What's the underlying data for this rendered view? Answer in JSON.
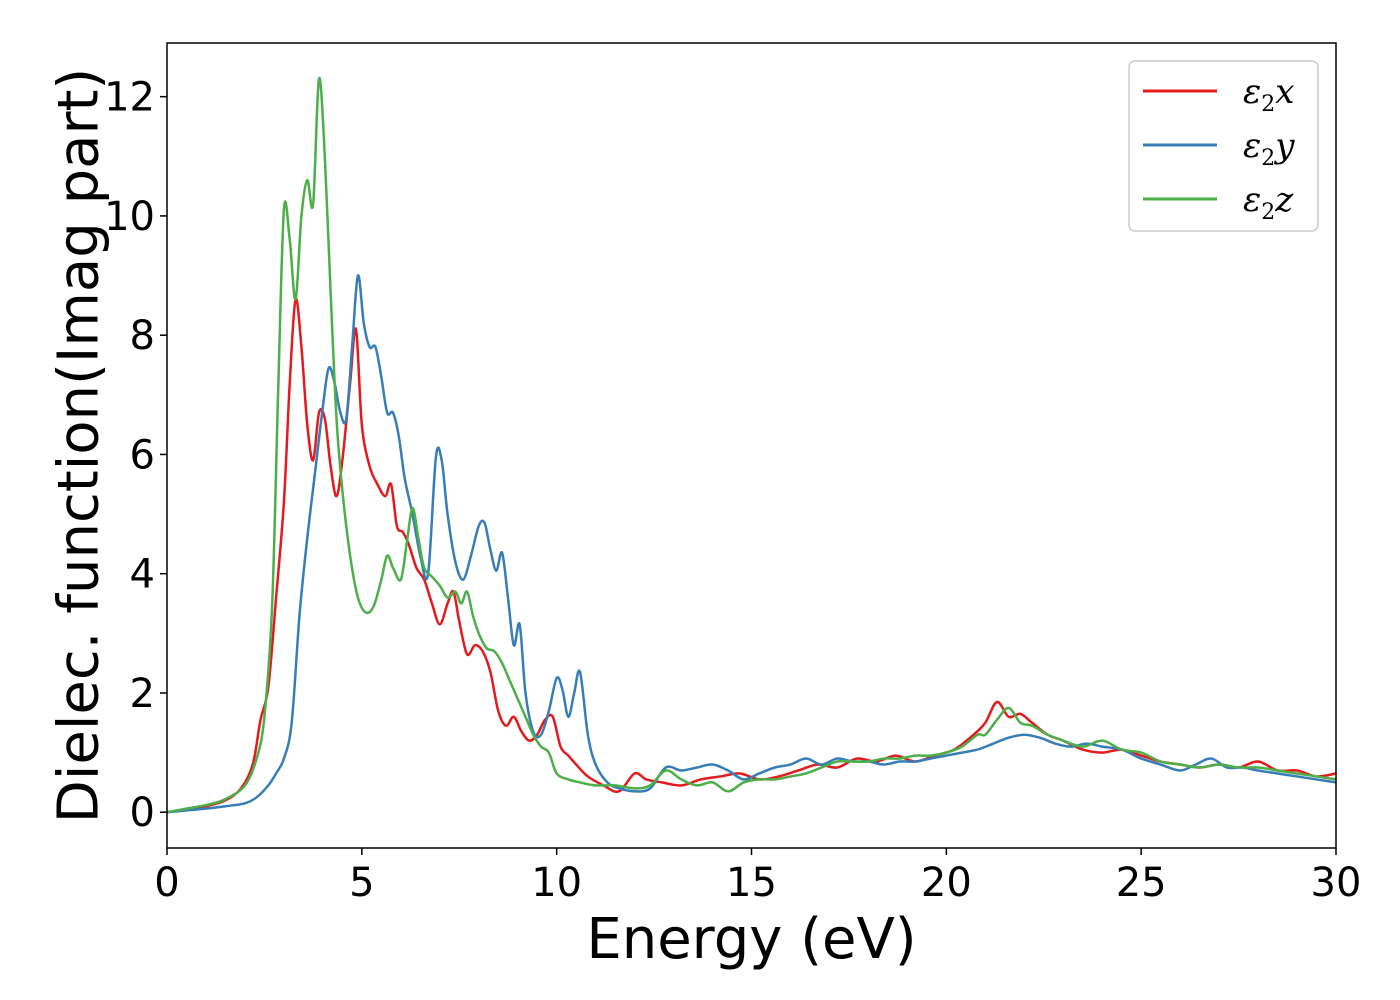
{
  "chart_data": {
    "type": "line",
    "title": "",
    "xlabel": "Energy (eV)",
    "ylabel": "Dielec. function(Imag part)",
    "xlim": [
      0,
      30
    ],
    "ylim": [
      -0.6,
      12.9
    ],
    "xticks": [
      0,
      5,
      10,
      15,
      20,
      25,
      30
    ],
    "yticks": [
      0,
      2,
      4,
      6,
      8,
      10,
      12
    ],
    "grid": false,
    "legend_position": "top-right",
    "series": [
      {
        "name": "ε2x",
        "legend": {
          "base": "ε",
          "sub": "2",
          "var": "x"
        },
        "color": "#e41a1c",
        "x": [
          0,
          0.5,
          1.0,
          1.5,
          1.9,
          2.2,
          2.4,
          2.6,
          2.8,
          3.0,
          3.15,
          3.3,
          3.45,
          3.6,
          3.75,
          3.9,
          4.05,
          4.2,
          4.35,
          4.5,
          4.7,
          4.85,
          5.0,
          5.2,
          5.4,
          5.6,
          5.75,
          5.9,
          6.05,
          6.2,
          6.4,
          6.6,
          6.8,
          7.0,
          7.2,
          7.35,
          7.5,
          7.7,
          7.9,
          8.1,
          8.3,
          8.5,
          8.7,
          8.9,
          9.1,
          9.3,
          9.5,
          9.7,
          9.9,
          10.1,
          10.3,
          10.5,
          10.8,
          11.2,
          11.6,
          12.0,
          12.3,
          12.7,
          13.2,
          13.7,
          14.2,
          14.7,
          15.2,
          15.7,
          16.2,
          16.7,
          17.2,
          17.7,
          18.2,
          18.7,
          19.2,
          19.7,
          20.2,
          20.7,
          21.0,
          21.3,
          21.6,
          21.9,
          22.2,
          22.6,
          23.0,
          23.5,
          24.0,
          24.5,
          25.0,
          25.5,
          26.0,
          26.5,
          27.0,
          27.5,
          28.0,
          28.5,
          29.0,
          29.5,
          30.0
        ],
        "y": [
          0.0,
          0.05,
          0.1,
          0.2,
          0.4,
          0.8,
          1.55,
          2.1,
          3.6,
          5.2,
          7.2,
          8.6,
          7.8,
          6.5,
          5.9,
          6.7,
          6.6,
          5.8,
          5.3,
          5.9,
          7.2,
          8.1,
          6.5,
          5.8,
          5.5,
          5.3,
          5.5,
          4.8,
          4.7,
          4.5,
          4.1,
          3.9,
          3.5,
          3.15,
          3.5,
          3.7,
          3.2,
          2.65,
          2.8,
          2.7,
          2.35,
          1.7,
          1.45,
          1.6,
          1.35,
          1.2,
          1.3,
          1.55,
          1.6,
          1.1,
          0.95,
          0.8,
          0.6,
          0.45,
          0.35,
          0.65,
          0.55,
          0.5,
          0.45,
          0.55,
          0.6,
          0.65,
          0.55,
          0.6,
          0.7,
          0.8,
          0.75,
          0.9,
          0.85,
          0.95,
          0.85,
          0.95,
          1.05,
          1.3,
          1.5,
          1.85,
          1.6,
          1.65,
          1.5,
          1.3,
          1.2,
          1.05,
          1.0,
          1.05,
          0.95,
          0.85,
          0.8,
          0.75,
          0.8,
          0.75,
          0.85,
          0.7,
          0.7,
          0.6,
          0.65
        ]
      },
      {
        "name": "ε2y",
        "legend": {
          "base": "ε",
          "sub": "2",
          "var": "y"
        },
        "color": "#377eb8",
        "x": [
          0,
          0.5,
          1.0,
          1.5,
          2.0,
          2.3,
          2.6,
          2.8,
          3.0,
          3.2,
          3.4,
          3.6,
          3.8,
          4.0,
          4.15,
          4.3,
          4.45,
          4.6,
          4.75,
          4.9,
          5.05,
          5.2,
          5.35,
          5.5,
          5.65,
          5.8,
          5.95,
          6.1,
          6.3,
          6.5,
          6.7,
          6.9,
          7.05,
          7.2,
          7.4,
          7.6,
          7.8,
          8.0,
          8.15,
          8.3,
          8.45,
          8.6,
          8.75,
          8.9,
          9.05,
          9.2,
          9.4,
          9.6,
          9.8,
          10.0,
          10.15,
          10.3,
          10.45,
          10.6,
          10.8,
          11.0,
          11.3,
          11.6,
          12.0,
          12.4,
          12.8,
          13.2,
          13.6,
          14.0,
          14.4,
          14.8,
          15.2,
          15.6,
          16.0,
          16.4,
          16.8,
          17.2,
          17.6,
          18.0,
          18.4,
          18.8,
          19.2,
          19.6,
          20.0,
          20.4,
          20.8,
          21.2,
          21.6,
          22.0,
          22.4,
          22.8,
          23.2,
          23.6,
          24.0,
          24.5,
          25.0,
          25.5,
          26.0,
          26.4,
          26.8,
          27.2,
          27.6,
          28.0,
          28.5,
          29.0,
          29.5,
          30.0
        ],
        "y": [
          0.0,
          0.03,
          0.06,
          0.1,
          0.15,
          0.25,
          0.45,
          0.65,
          0.9,
          1.5,
          3.3,
          4.6,
          5.7,
          6.8,
          7.45,
          7.2,
          6.7,
          6.6,
          7.8,
          9.0,
          8.2,
          7.8,
          7.8,
          7.3,
          6.7,
          6.7,
          6.3,
          5.6,
          5.0,
          4.3,
          4.0,
          5.95,
          5.9,
          5.0,
          4.2,
          3.9,
          4.3,
          4.8,
          4.85,
          4.4,
          4.05,
          4.35,
          3.6,
          2.8,
          3.15,
          2.0,
          1.35,
          1.3,
          1.7,
          2.25,
          2.05,
          1.6,
          2.0,
          2.35,
          1.3,
          0.8,
          0.5,
          0.4,
          0.35,
          0.4,
          0.75,
          0.7,
          0.75,
          0.8,
          0.7,
          0.55,
          0.65,
          0.75,
          0.8,
          0.9,
          0.8,
          0.9,
          0.85,
          0.85,
          0.8,
          0.85,
          0.85,
          0.9,
          0.95,
          1.0,
          1.05,
          1.15,
          1.25,
          1.3,
          1.25,
          1.15,
          1.1,
          1.15,
          1.1,
          1.05,
          0.9,
          0.8,
          0.7,
          0.8,
          0.9,
          0.75,
          0.75,
          0.7,
          0.65,
          0.6,
          0.55,
          0.5
        ]
      },
      {
        "name": "ε2z",
        "legend": {
          "base": "ε",
          "sub": "2",
          "var": "z"
        },
        "color": "#4daf4a",
        "x": [
          0,
          0.5,
          1.0,
          1.5,
          2.0,
          2.3,
          2.5,
          2.7,
          2.85,
          3.0,
          3.15,
          3.3,
          3.45,
          3.6,
          3.75,
          3.9,
          4.05,
          4.2,
          4.35,
          4.5,
          4.7,
          4.9,
          5.1,
          5.3,
          5.5,
          5.65,
          5.8,
          6.0,
          6.15,
          6.3,
          6.45,
          6.6,
          6.8,
          7.0,
          7.2,
          7.4,
          7.55,
          7.7,
          7.85,
          8.0,
          8.2,
          8.4,
          8.6,
          8.8,
          9.0,
          9.2,
          9.4,
          9.6,
          9.8,
          10.0,
          10.3,
          10.6,
          11.0,
          11.5,
          12.0,
          12.4,
          12.8,
          13.2,
          13.6,
          14.0,
          14.4,
          14.8,
          15.2,
          15.6,
          16.0,
          16.4,
          16.8,
          17.2,
          17.6,
          18.0,
          18.4,
          18.8,
          19.2,
          19.6,
          20.0,
          20.4,
          20.8,
          21.0,
          21.3,
          21.6,
          21.9,
          22.2,
          22.6,
          23.0,
          23.5,
          24.0,
          24.5,
          25.0,
          25.5,
          26.0,
          26.5,
          27.0,
          27.5,
          28.0,
          28.5,
          29.0,
          29.5,
          30.0
        ],
        "y": [
          0.0,
          0.06,
          0.12,
          0.22,
          0.45,
          0.9,
          1.6,
          3.5,
          7.0,
          10.1,
          9.6,
          8.6,
          10.0,
          10.6,
          10.2,
          12.3,
          11.0,
          8.7,
          6.6,
          5.4,
          4.3,
          3.6,
          3.35,
          3.45,
          3.9,
          4.3,
          4.1,
          3.9,
          4.5,
          5.1,
          4.6,
          4.1,
          3.95,
          3.8,
          3.6,
          3.7,
          3.5,
          3.7,
          3.3,
          3.0,
          2.75,
          2.7,
          2.5,
          2.2,
          1.9,
          1.6,
          1.3,
          1.1,
          1.0,
          0.65,
          0.55,
          0.5,
          0.45,
          0.45,
          0.4,
          0.45,
          0.7,
          0.55,
          0.45,
          0.5,
          0.35,
          0.5,
          0.55,
          0.55,
          0.6,
          0.65,
          0.75,
          0.85,
          0.85,
          0.85,
          0.9,
          0.9,
          0.95,
          0.95,
          1.0,
          1.1,
          1.3,
          1.3,
          1.55,
          1.75,
          1.5,
          1.45,
          1.3,
          1.2,
          1.1,
          1.2,
          1.05,
          1.0,
          0.85,
          0.8,
          0.75,
          0.8,
          0.75,
          0.75,
          0.7,
          0.65,
          0.6,
          0.55
        ]
      }
    ]
  }
}
